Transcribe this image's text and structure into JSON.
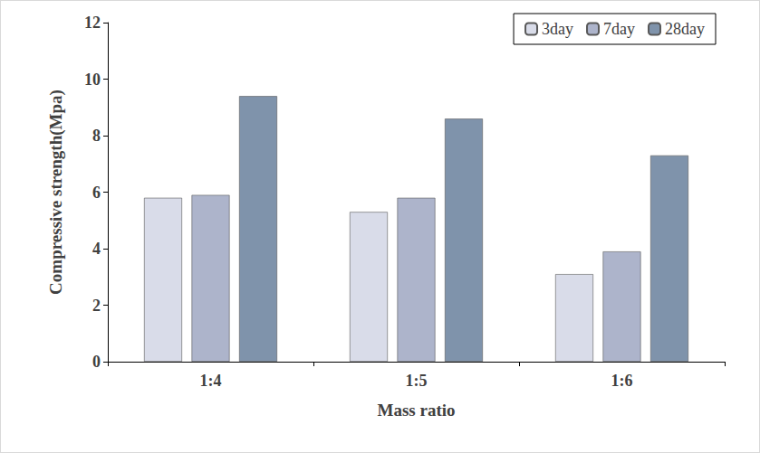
{
  "chart_data": {
    "type": "bar",
    "categories": [
      "1:4",
      "1:5",
      "1:6"
    ],
    "series": [
      {
        "name": "3day",
        "color": "#d9dce9",
        "values": [
          5.8,
          5.3,
          3.1
        ]
      },
      {
        "name": "7day",
        "color": "#adb4cb",
        "values": [
          5.9,
          5.8,
          3.9
        ]
      },
      {
        "name": "28day",
        "color": "#7f93ab",
        "values": [
          9.4,
          8.6,
          7.3
        ]
      }
    ],
    "x_label": "Mass ratio",
    "y_label": "Compressive strength(Mpa)",
    "ylim": [
      0,
      12
    ],
    "yticks": [
      0,
      2,
      4,
      6,
      8,
      10,
      12
    ],
    "grid": false,
    "legend": "upper right"
  }
}
